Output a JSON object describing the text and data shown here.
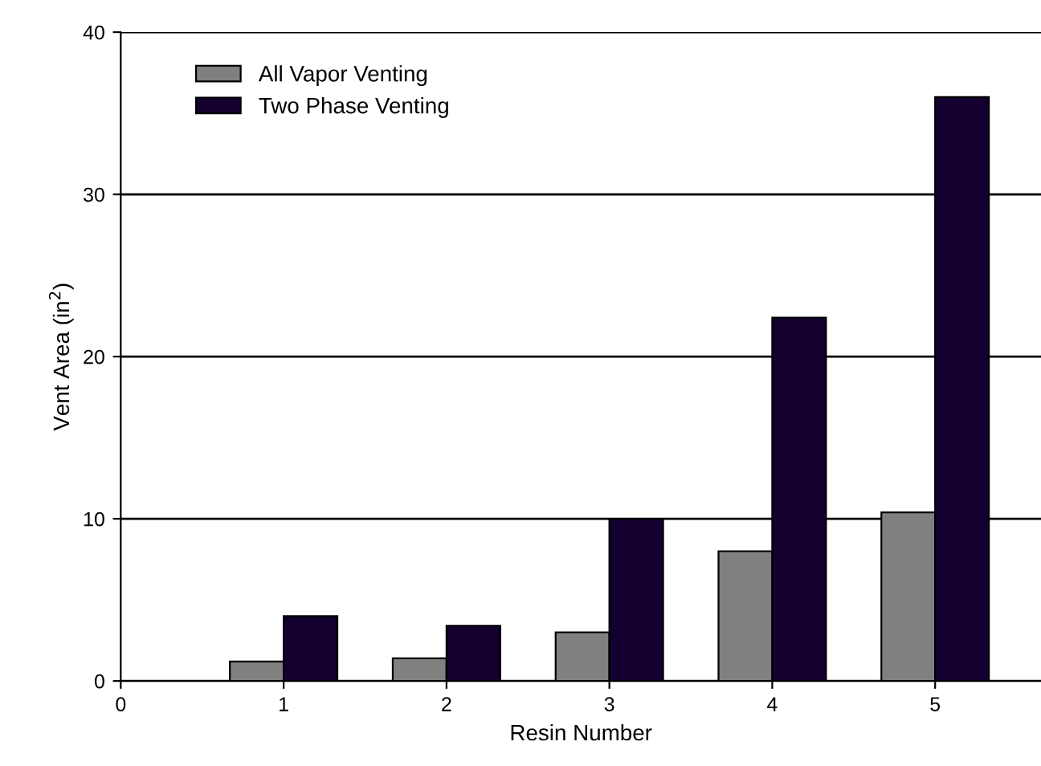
{
  "chart_data": {
    "type": "bar",
    "xlabel": "Resin Number",
    "ylabel": "Vent Area (in$^{2}$)",
    "x": [
      1,
      2,
      3,
      4,
      5
    ],
    "series": [
      {
        "name": "All Vapor Venting",
        "color": "#808080",
        "values": [
          1.2,
          1.4,
          3,
          8,
          10.4
        ]
      },
      {
        "name": "Two Phase Venting",
        "color": "#140030",
        "values": [
          4,
          3.4,
          10,
          22.4,
          36
        ]
      }
    ],
    "xlim": [
      0,
      5.65
    ],
    "xticks": [
      0,
      1,
      2,
      3,
      4,
      5
    ],
    "ylim": [
      0,
      40
    ],
    "yticks": [
      0,
      10,
      20,
      30,
      40
    ],
    "grid": "y",
    "legend": "top left"
  }
}
